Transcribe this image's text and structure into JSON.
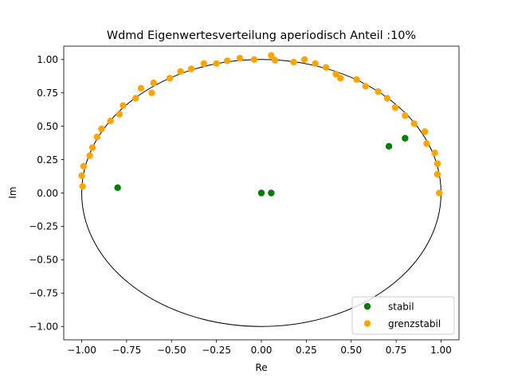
{
  "chart_data": {
    "type": "scatter",
    "title": "Wdmd Eigenwertesverteilung aperiodisch Anteil :10%",
    "xlabel": "Re",
    "ylabel": "Im",
    "xlim": [
      -1.1,
      1.1
    ],
    "ylim": [
      -1.1,
      1.1
    ],
    "x_ticks": [
      "−1.00",
      "−0.75",
      "−0.50",
      "−0.25",
      "0.00",
      "0.25",
      "0.50",
      "0.75",
      "1.00"
    ],
    "y_ticks": [
      "−1.00",
      "−0.75",
      "−0.50",
      "−0.25",
      "0.00",
      "0.25",
      "0.50",
      "0.75",
      "1.00"
    ],
    "x_tick_values": [
      -1.0,
      -0.75,
      -0.5,
      -0.25,
      0.0,
      0.25,
      0.5,
      0.75,
      1.0
    ],
    "y_tick_values": [
      -1.0,
      -0.75,
      -0.5,
      -0.25,
      0.0,
      0.25,
      0.5,
      0.75,
      1.0
    ],
    "grid": false,
    "legend_position": "bottom-right",
    "unit_circle": {
      "center": [
        0,
        0
      ],
      "radius": 1.0,
      "color": "#000000"
    },
    "series": [
      {
        "name": "stabil",
        "color": "#008000",
        "points": [
          [
            -0.8,
            0.04
          ],
          [
            0.0,
            0.0
          ],
          [
            0.055,
            0.0
          ],
          [
            0.71,
            0.35
          ],
          [
            0.8,
            0.41
          ]
        ]
      },
      {
        "name": "grenzstabil",
        "color": "#ffa500",
        "points": [
          [
            -0.995,
            0.05
          ],
          [
            -1.0,
            0.13
          ],
          [
            -0.99,
            0.2
          ],
          [
            -0.955,
            0.28
          ],
          [
            -0.94,
            0.34
          ],
          [
            -0.915,
            0.42
          ],
          [
            -0.89,
            0.48
          ],
          [
            -0.84,
            0.54
          ],
          [
            -0.79,
            0.59
          ],
          [
            -0.77,
            0.655
          ],
          [
            -0.7,
            0.71
          ],
          [
            -0.67,
            0.785
          ],
          [
            -0.61,
            0.75
          ],
          [
            -0.6,
            0.825
          ],
          [
            -0.51,
            0.86
          ],
          [
            -0.45,
            0.91
          ],
          [
            -0.39,
            0.93
          ],
          [
            -0.32,
            0.97
          ],
          [
            -0.25,
            0.97
          ],
          [
            -0.19,
            0.99
          ],
          [
            -0.12,
            1.01
          ],
          [
            -0.04,
            1.0
          ],
          [
            0.055,
            1.03
          ],
          [
            0.075,
            0.995
          ],
          [
            0.18,
            0.98
          ],
          [
            0.24,
            1.0
          ],
          [
            0.3,
            0.97
          ],
          [
            0.36,
            0.94
          ],
          [
            0.415,
            0.89
          ],
          [
            0.44,
            0.86
          ],
          [
            0.53,
            0.85
          ],
          [
            0.58,
            0.8
          ],
          [
            0.65,
            0.76
          ],
          [
            0.7,
            0.71
          ],
          [
            0.745,
            0.64
          ],
          [
            0.8,
            0.58
          ],
          [
            0.85,
            0.52
          ],
          [
            0.91,
            0.46
          ],
          [
            0.92,
            0.37
          ],
          [
            0.965,
            0.3
          ],
          [
            0.98,
            0.22
          ],
          [
            0.98,
            0.14
          ],
          [
            0.99,
            0.0
          ]
        ]
      }
    ]
  }
}
